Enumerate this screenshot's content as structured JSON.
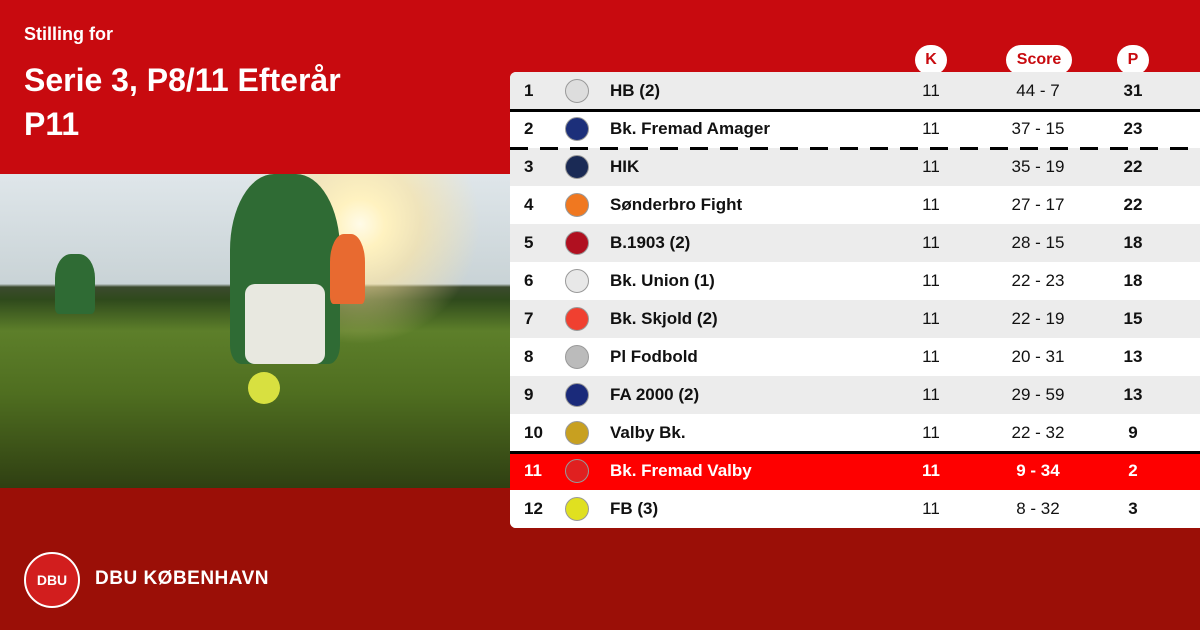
{
  "header": {
    "subtitle": "Stilling for",
    "title_line1": "Serie 3, P8/11 Efterår",
    "title_line2": "P11"
  },
  "columns": {
    "k": "K",
    "score": "Score",
    "p": "P"
  },
  "colors": {
    "primary_red": "#c80a0f",
    "dark_red": "#9b0f07",
    "highlight_red": "#fe0000",
    "row_alt": "#ececec"
  },
  "rows": [
    {
      "pos": "1",
      "team": "HB (2)",
      "k": "11",
      "score": "44 - 7",
      "p": "31",
      "logo": "hb-crest-icon",
      "logo_color": "#dddddd"
    },
    {
      "pos": "2",
      "team": "Bk. Fremad Amager",
      "k": "11",
      "score": "37 - 15",
      "p": "23",
      "logo": "fremad-amager-shield-icon",
      "logo_color": "#1c2f7a"
    },
    {
      "pos": "3",
      "team": "HIK",
      "k": "11",
      "score": "35 - 19",
      "p": "22",
      "logo": "hik-shield-icon",
      "logo_color": "#1a2a55"
    },
    {
      "pos": "4",
      "team": "Sønderbro Fight",
      "k": "11",
      "score": "27 - 17",
      "p": "22",
      "logo": "sonderbro-ball-icon",
      "logo_color": "#f07820"
    },
    {
      "pos": "5",
      "team": "B.1903 (2)",
      "k": "11",
      "score": "28 - 15",
      "p": "18",
      "logo": "b1903-crest-icon",
      "logo_color": "#b01020"
    },
    {
      "pos": "6",
      "team": "Bk. Union (1)",
      "k": "11",
      "score": "22 - 23",
      "p": "18",
      "logo": "union-shield-icon",
      "logo_color": "#e8e8e8"
    },
    {
      "pos": "7",
      "team": "Bk. Skjold (2)",
      "k": "11",
      "score": "22 - 19",
      "p": "15",
      "logo": "skjold-crest-icon",
      "logo_color": "#f04030"
    },
    {
      "pos": "8",
      "team": "Pl Fodbold",
      "k": "11",
      "score": "20 - 31",
      "p": "13",
      "logo": "pl-crest-icon",
      "logo_color": "#bbbbbb"
    },
    {
      "pos": "9",
      "team": "FA 2000 (2)",
      "k": "11",
      "score": "29 - 59",
      "p": "13",
      "logo": "fa2000-logo-icon",
      "logo_color": "#1a2a7a"
    },
    {
      "pos": "10",
      "team": "Valby Bk.",
      "k": "11",
      "score": "22 - 32",
      "p": "9",
      "logo": "valby-crest-icon",
      "logo_color": "#c8a020"
    },
    {
      "pos": "11",
      "team": "Bk. Fremad Valby",
      "k": "11",
      "score": "9 - 34",
      "p": "2",
      "logo": "fremad-valby-crest-icon",
      "logo_color": "#e02020",
      "highlight": true
    },
    {
      "pos": "12",
      "team": "FB (3)",
      "k": "11",
      "score": "8 - 32",
      "p": "3",
      "logo": "fb-crest-icon",
      "logo_color": "#e0e020"
    }
  ],
  "footer": {
    "org": "DBU KØBENHAVN",
    "logo_text": "DBU"
  }
}
